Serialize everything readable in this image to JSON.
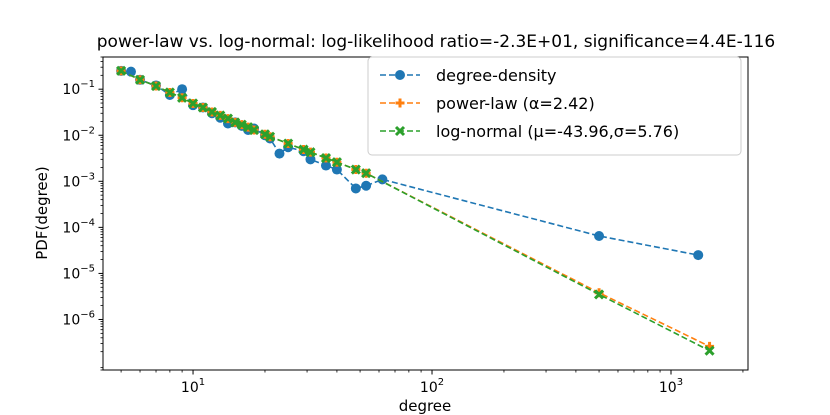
{
  "chart_data": {
    "type": "line",
    "title": "power-law vs. log-normal: log-likelihood ratio=-2.3E+01, significance=4.4E-116",
    "xlabel": "degree",
    "ylabel": "PDF(degree)",
    "xscale": "log",
    "yscale": "log",
    "xlim": [
      4.2,
      2100
    ],
    "ylim": [
      8e-08,
      0.5
    ],
    "xticks": [
      {
        "value": 10,
        "base": "10",
        "exp": "1"
      },
      {
        "value": 100,
        "base": "10",
        "exp": "2"
      },
      {
        "value": 1000,
        "base": "10",
        "exp": "3"
      }
    ],
    "yticks": [
      {
        "value": 1e-06,
        "base": "10",
        "exp": "−6"
      },
      {
        "value": 1e-05,
        "base": "10",
        "exp": "−5"
      },
      {
        "value": 0.0001,
        "base": "10",
        "exp": "−4"
      },
      {
        "value": 0.001,
        "base": "10",
        "exp": "−3"
      },
      {
        "value": 0.01,
        "base": "10",
        "exp": "−2"
      },
      {
        "value": 0.1,
        "base": "10",
        "exp": "−1"
      }
    ],
    "legend_position": "top-right",
    "series": [
      {
        "name": "degree-density",
        "legend_label": "degree-density",
        "color": "#1f77b4",
        "marker": "circle",
        "linestyle": "dashed",
        "points": [
          [
            5,
            0.25
          ],
          [
            5.5,
            0.24
          ],
          [
            6,
            0.16
          ],
          [
            7,
            0.12
          ],
          [
            8,
            0.075
          ],
          [
            9,
            0.1
          ],
          [
            10,
            0.045
          ],
          [
            11,
            0.04
          ],
          [
            12,
            0.03
          ],
          [
            13,
            0.024
          ],
          [
            14,
            0.018
          ],
          [
            15,
            0.019
          ],
          [
            16,
            0.016
          ],
          [
            17,
            0.013
          ],
          [
            18,
            0.014
          ],
          [
            20,
            0.01
          ],
          [
            21,
            0.0085
          ],
          [
            23,
            0.004
          ],
          [
            25,
            0.0055
          ],
          [
            29,
            0.0045
          ],
          [
            31,
            0.003
          ],
          [
            36,
            0.0022
          ],
          [
            40,
            0.0018
          ],
          [
            48,
            0.0007
          ],
          [
            53,
            0.0008
          ],
          [
            62,
            0.0011
          ],
          [
            500,
            6.5e-05
          ],
          [
            1300,
            2.5e-05
          ]
        ]
      },
      {
        "name": "power-law",
        "legend_label": "power-law (α=2.42)",
        "color": "#ff7f0e",
        "marker": "plus",
        "linestyle": "dashed",
        "points": [
          [
            5,
            0.25
          ],
          [
            6,
            0.16
          ],
          [
            7,
            0.117
          ],
          [
            8,
            0.085
          ],
          [
            9,
            0.065
          ],
          [
            10,
            0.049
          ],
          [
            11,
            0.04
          ],
          [
            12,
            0.032
          ],
          [
            13,
            0.027
          ],
          [
            14,
            0.023
          ],
          [
            15,
            0.019
          ],
          [
            16,
            0.017
          ],
          [
            17,
            0.015
          ],
          [
            18,
            0.013
          ],
          [
            20,
            0.0105
          ],
          [
            21,
            0.0093
          ],
          [
            25,
            0.0066
          ],
          [
            29,
            0.0049
          ],
          [
            31,
            0.0043
          ],
          [
            36,
            0.0032
          ],
          [
            40,
            0.0026
          ],
          [
            48,
            0.0018
          ],
          [
            53,
            0.0015
          ],
          [
            500,
            3.8e-06
          ],
          [
            1450,
            2.6e-07
          ]
        ]
      },
      {
        "name": "log-normal",
        "legend_label": "log-normal (μ=-43.96,σ=5.76)",
        "color": "#2ca02c",
        "marker": "x",
        "linestyle": "dashed",
        "points": [
          [
            5,
            0.25
          ],
          [
            6,
            0.16
          ],
          [
            7,
            0.117
          ],
          [
            8,
            0.085
          ],
          [
            9,
            0.065
          ],
          [
            10,
            0.049
          ],
          [
            11,
            0.04
          ],
          [
            12,
            0.032
          ],
          [
            13,
            0.027
          ],
          [
            14,
            0.023
          ],
          [
            15,
            0.019
          ],
          [
            16,
            0.017
          ],
          [
            17,
            0.015
          ],
          [
            18,
            0.013
          ],
          [
            20,
            0.0105
          ],
          [
            21,
            0.0093
          ],
          [
            25,
            0.0066
          ],
          [
            29,
            0.0049
          ],
          [
            31,
            0.0043
          ],
          [
            36,
            0.0032
          ],
          [
            40,
            0.0026
          ],
          [
            48,
            0.0018
          ],
          [
            53,
            0.0015
          ],
          [
            500,
            3.5e-06
          ],
          [
            1450,
            2.1e-07
          ]
        ]
      }
    ]
  }
}
